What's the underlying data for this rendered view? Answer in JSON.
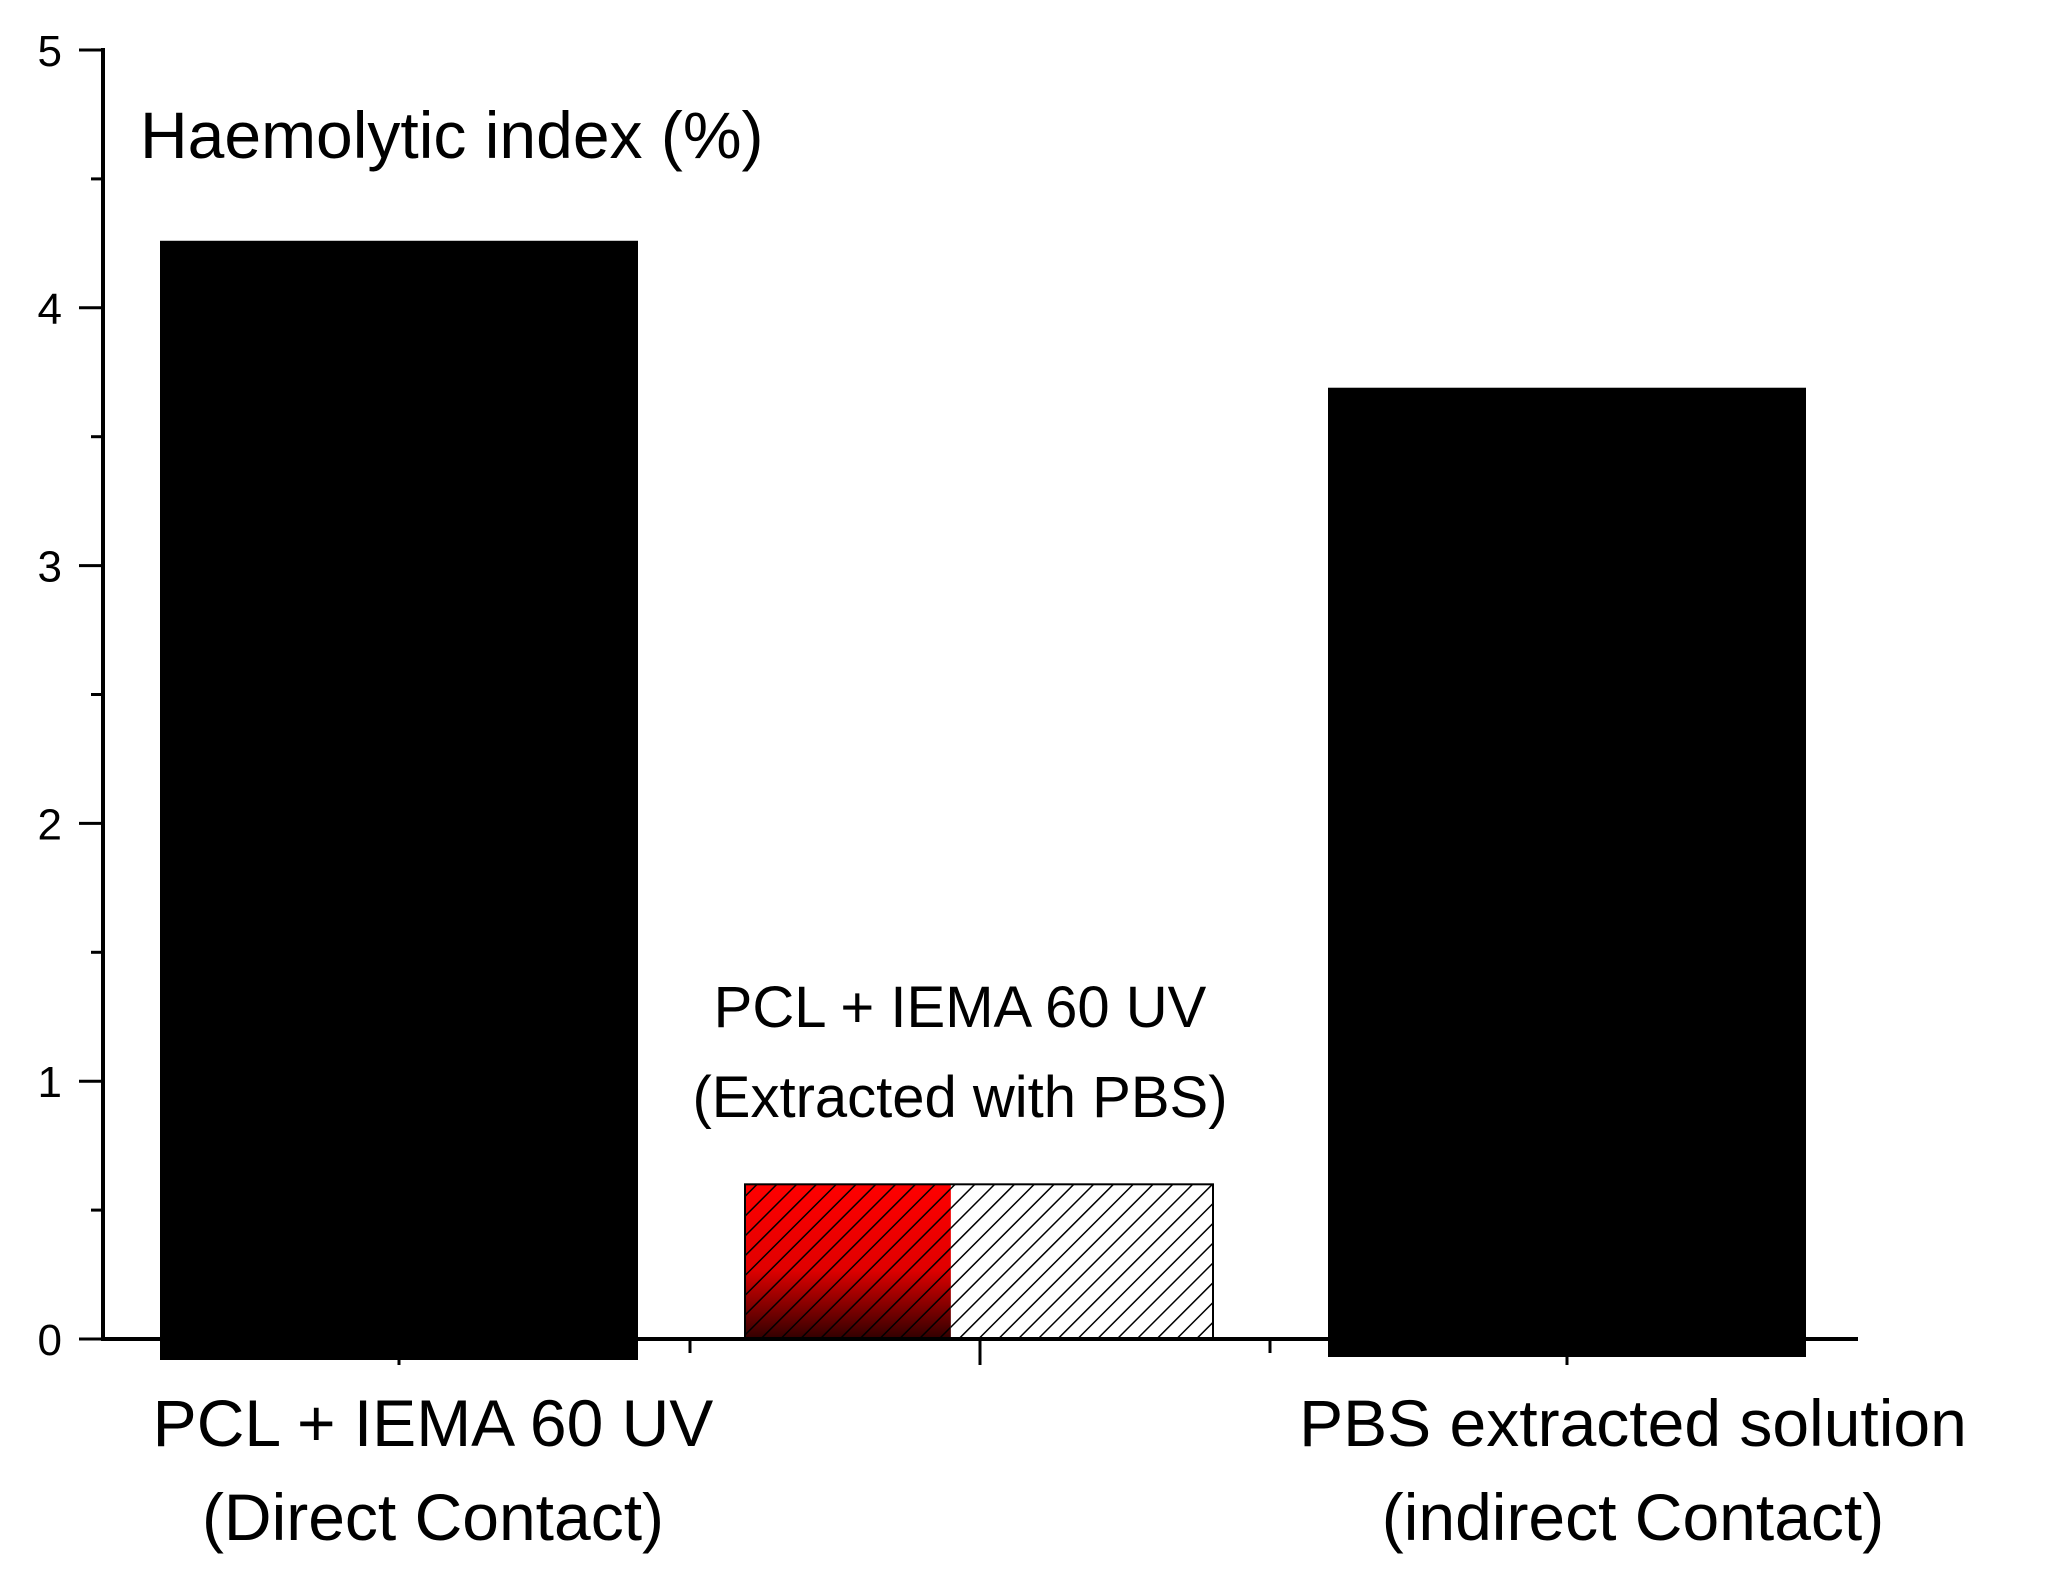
{
  "chart_data": {
    "type": "bar",
    "ylabel": "Haemolytic index (%)",
    "ylim": [
      0,
      5
    ],
    "yticks": [
      "0",
      "1",
      "2",
      "3",
      "4",
      "5"
    ],
    "grid": false,
    "legend": "none",
    "categories": [
      {
        "line1": "PCL + IEMA 60 UV",
        "line2": "(Direct Contact)"
      },
      {
        "line1": "PCL + IEMA 60 UV",
        "line2": "(Extracted  with PBS)"
      },
      {
        "line1": "PBS extracted solution",
        "line2": "(indirect Contact)"
      }
    ],
    "values": [
      4.26,
      0.6,
      3.69
    ],
    "colors": {
      "bar_solid": "#000000",
      "bar_hatch_red": "#ff0000",
      "bar_hatch_white": "#ffffff",
      "axis": "#000000"
    }
  }
}
